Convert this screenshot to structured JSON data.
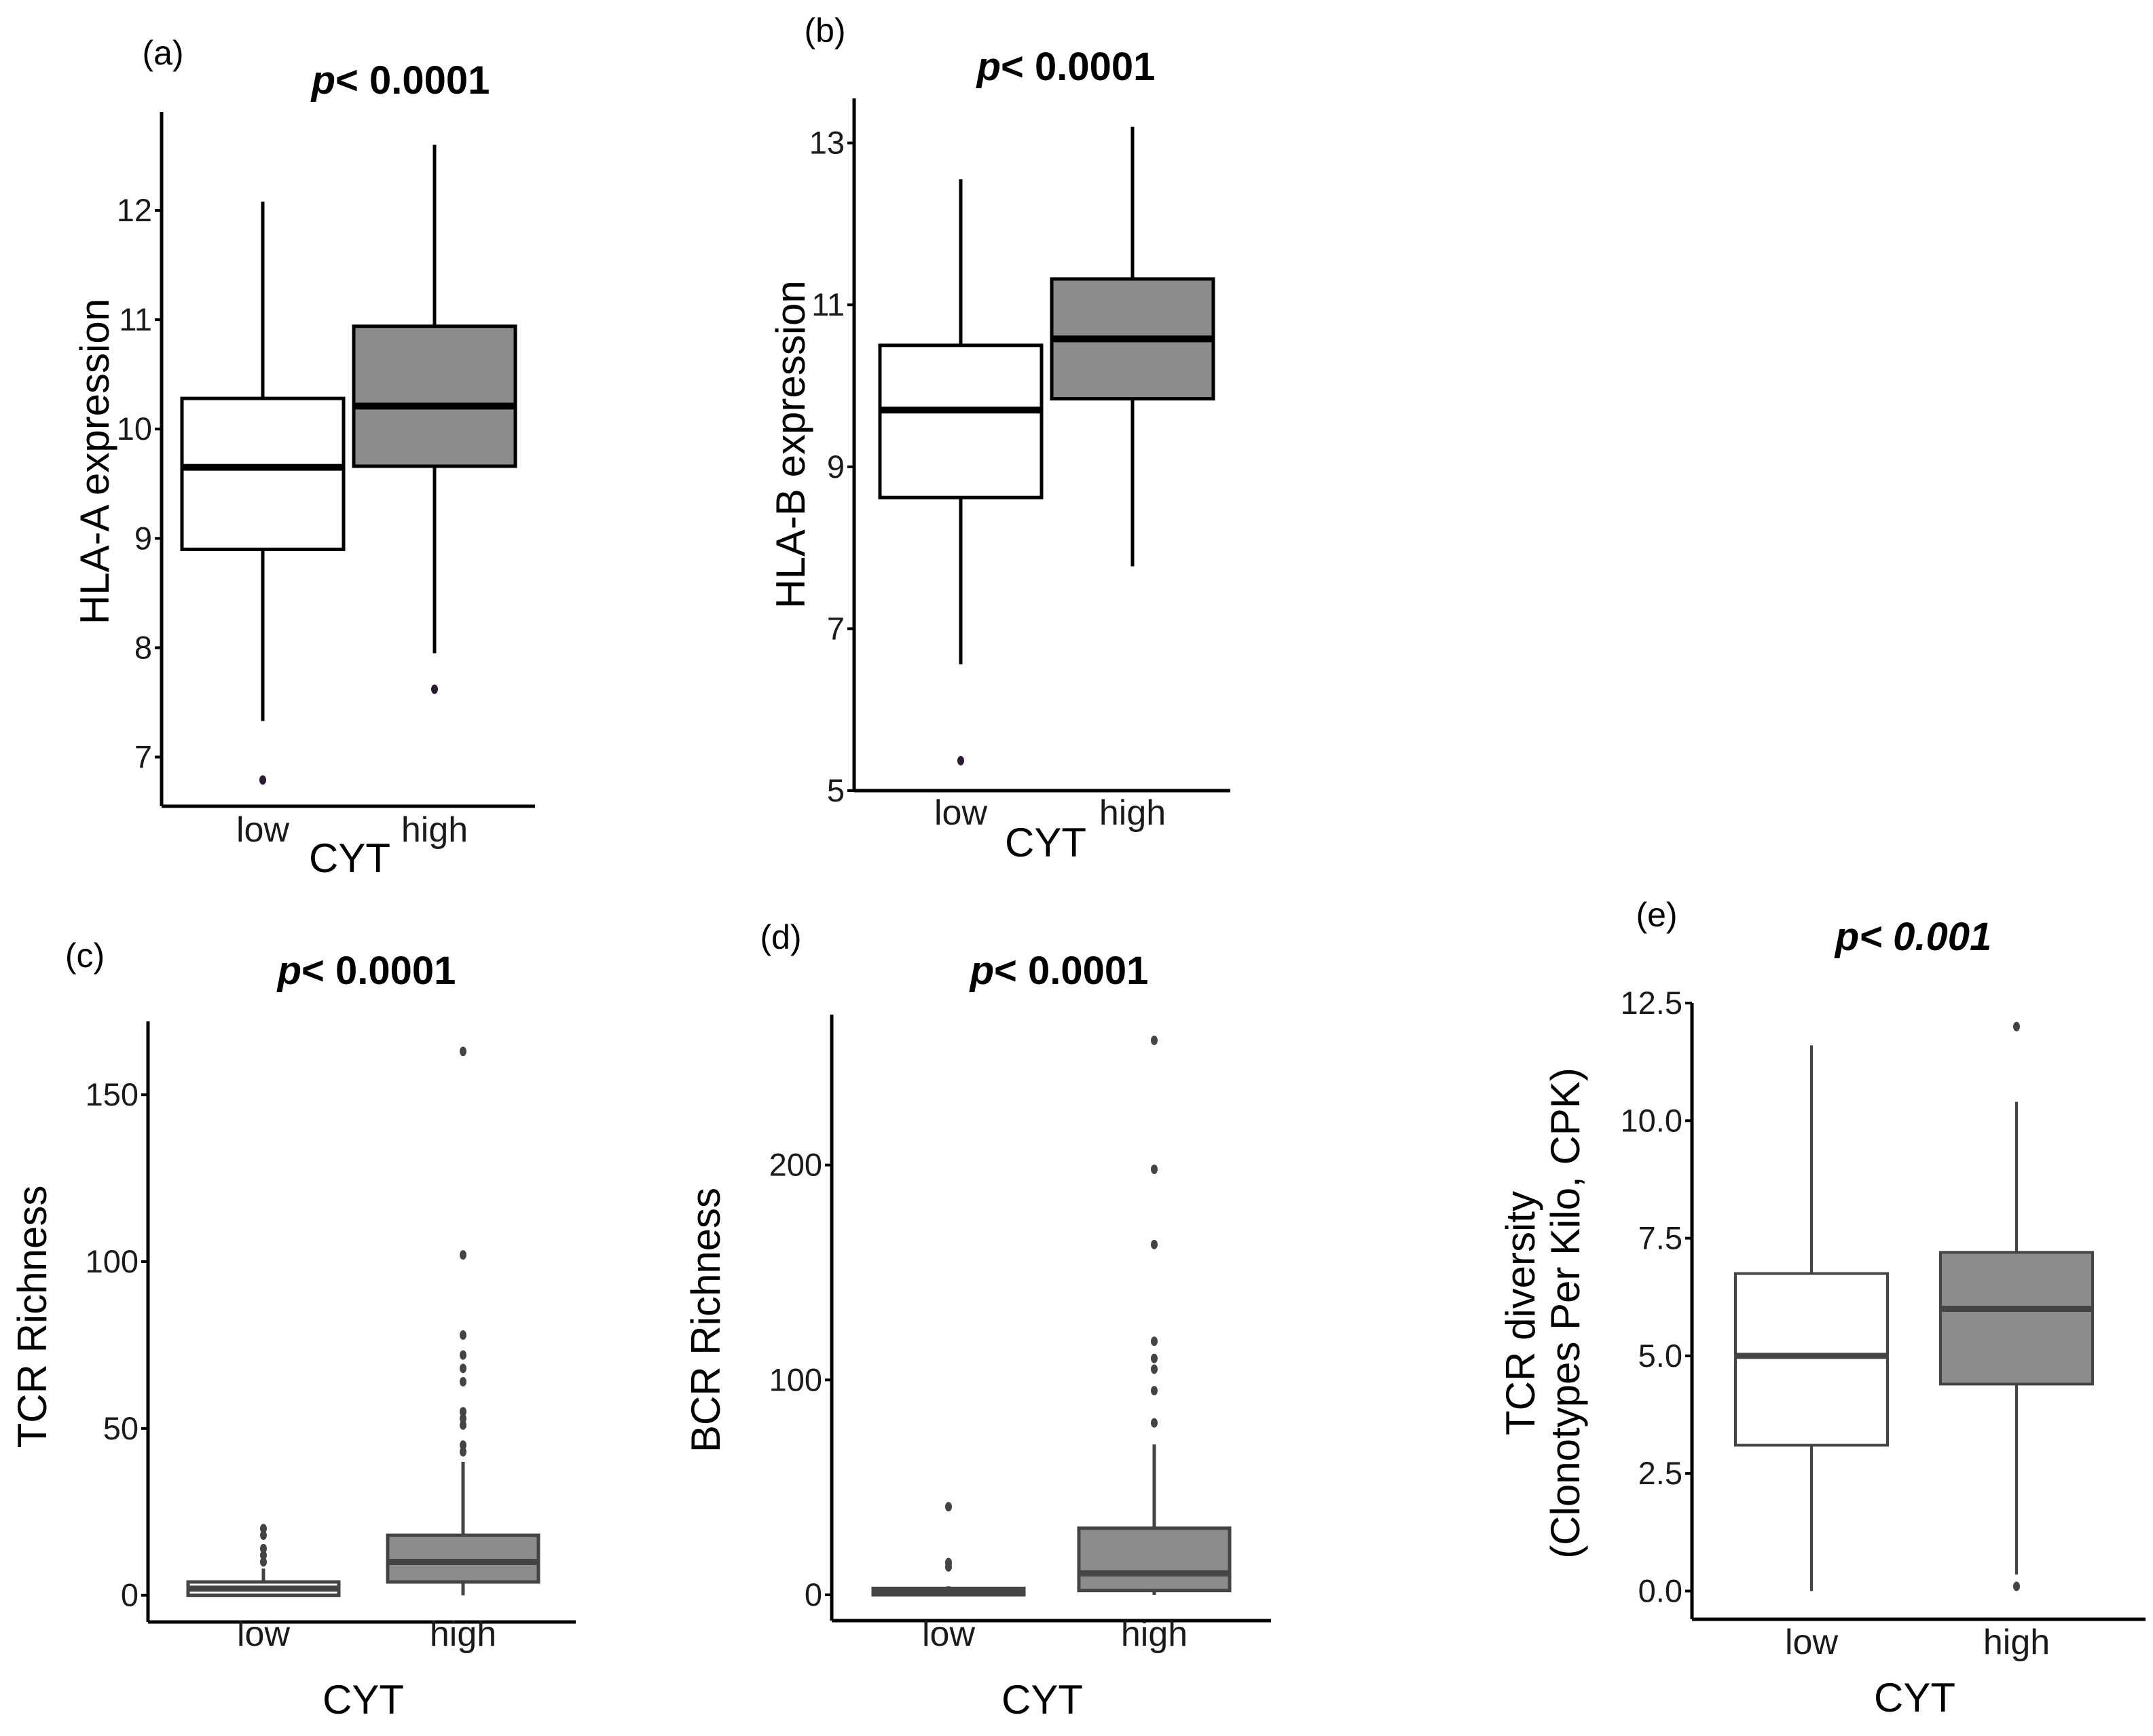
{
  "chart_data": [
    {
      "type": "boxplot",
      "panel": "(a)",
      "annotation": {
        "prefix": "p",
        "text": "< 0.0001",
        "italic_all": false
      },
      "xlabel": "CYT",
      "ylabel": "HLA-A expression",
      "ylim": [
        6.55,
        12.9
      ],
      "yticks": [
        7,
        8,
        9,
        10,
        11,
        12
      ],
      "ytick_labels": [
        "7",
        "8",
        "9",
        "10",
        "11",
        "12"
      ],
      "categories": [
        "low",
        "high"
      ],
      "boxes": [
        {
          "name": "low",
          "fill": "#ffffff",
          "q1": 8.9,
          "median": 9.65,
          "q3": 10.28,
          "whisker_low": 7.33,
          "whisker_high": 12.08,
          "outliers": [
            6.79
          ]
        },
        {
          "name": "high",
          "fill": "#8c8c8c",
          "q1": 9.66,
          "median": 10.21,
          "q3": 10.94,
          "whisker_low": 7.95,
          "whisker_high": 12.6,
          "outliers": [
            7.62
          ]
        }
      ]
    },
    {
      "type": "boxplot",
      "panel": "(b)",
      "annotation": {
        "prefix": "p",
        "text": "< 0.0001",
        "italic_all": false
      },
      "xlabel": "CYT",
      "ylabel": "HLA-B expression",
      "ylim": [
        5,
        13.55
      ],
      "yticks": [
        5,
        7,
        9,
        11,
        13
      ],
      "ytick_labels": [
        "5",
        "7",
        "9",
        "11",
        "13"
      ],
      "categories": [
        "low",
        "high"
      ],
      "boxes": [
        {
          "name": "low",
          "fill": "#ffffff",
          "q1": 8.62,
          "median": 9.7,
          "q3": 10.5,
          "whisker_low": 6.56,
          "whisker_high": 12.55,
          "outliers": [
            5.37
          ]
        },
        {
          "name": "high",
          "fill": "#8c8c8c",
          "q1": 9.84,
          "median": 10.58,
          "q3": 11.32,
          "whisker_low": 7.77,
          "whisker_high": 13.2,
          "outliers": []
        }
      ]
    },
    {
      "type": "boxplot",
      "panel": "(c)",
      "annotation": {
        "prefix": "p",
        "text": "< 0.0001",
        "italic_all": false
      },
      "xlabel": "CYT",
      "ylabel": "TCR Richness",
      "ylim": [
        -8,
        172
      ],
      "yticks": [
        0,
        50,
        100,
        150
      ],
      "ytick_labels": [
        "0",
        "50",
        "100",
        "150"
      ],
      "categories": [
        "low",
        "high"
      ],
      "boxes": [
        {
          "name": "low",
          "fill": "#ffffff",
          "q1": 0,
          "median": 2,
          "q3": 4,
          "whisker_low": 0,
          "whisker_high": 8,
          "outliers": [
            10,
            12,
            14,
            18,
            20
          ]
        },
        {
          "name": "high",
          "fill": "#8c8c8c",
          "q1": 4,
          "median": 10,
          "q3": 18,
          "whisker_low": 0,
          "whisker_high": 40,
          "outliers": [
            43,
            45,
            51,
            53,
            55,
            64,
            68,
            72,
            78,
            102,
            163
          ]
        }
      ]
    },
    {
      "type": "boxplot",
      "panel": "(d)",
      "annotation": {
        "prefix": "p",
        "text": "< 0.0001",
        "italic_all": false
      },
      "xlabel": "CYT",
      "ylabel": "BCR Richness",
      "ylim": [
        -12,
        270
      ],
      "yticks": [
        0,
        100,
        200
      ],
      "ytick_labels": [
        "0",
        "100",
        "200"
      ],
      "categories": [
        "low",
        "high"
      ],
      "boxes": [
        {
          "name": "low",
          "fill": "#ffffff",
          "q1": 0,
          "median": 1,
          "q3": 3,
          "whisker_low": 0,
          "whisker_high": 4,
          "outliers": [
            13,
            15,
            41
          ]
        },
        {
          "name": "high",
          "fill": "#8c8c8c",
          "q1": 2,
          "median": 10,
          "q3": 31,
          "whisker_low": 0,
          "whisker_high": 70,
          "outliers": [
            80,
            95,
            105,
            110,
            118,
            163,
            198,
            258
          ]
        }
      ]
    },
    {
      "type": "boxplot",
      "panel": "(e)",
      "annotation": {
        "prefix": "p",
        "text": "< 0.001",
        "italic_all": true
      },
      "xlabel": "CYT",
      "ylabel_lines": [
        "TCR diversity",
        "(Clonotypes Per Kilo, CPK)"
      ],
      "ylim": [
        -0.6,
        12.5
      ],
      "yticks": [
        0,
        2.5,
        5,
        7.5,
        10,
        12.5
      ],
      "ytick_labels": [
        "0.0",
        "2.5",
        "5.0",
        "7.5",
        "10.0",
        "12.5"
      ],
      "categories": [
        "low",
        "high"
      ],
      "boxes": [
        {
          "name": "low",
          "fill": "#ffffff",
          "q1": 3.1,
          "median": 5.0,
          "q3": 6.75,
          "whisker_low": 0,
          "whisker_high": 11.6,
          "outliers": []
        },
        {
          "name": "high",
          "fill": "#8c8c8c",
          "q1": 4.4,
          "median": 6.0,
          "q3": 7.2,
          "whisker_low": 0.35,
          "whisker_high": 10.4,
          "outliers": [
            0.1,
            12.0
          ]
        }
      ]
    }
  ]
}
